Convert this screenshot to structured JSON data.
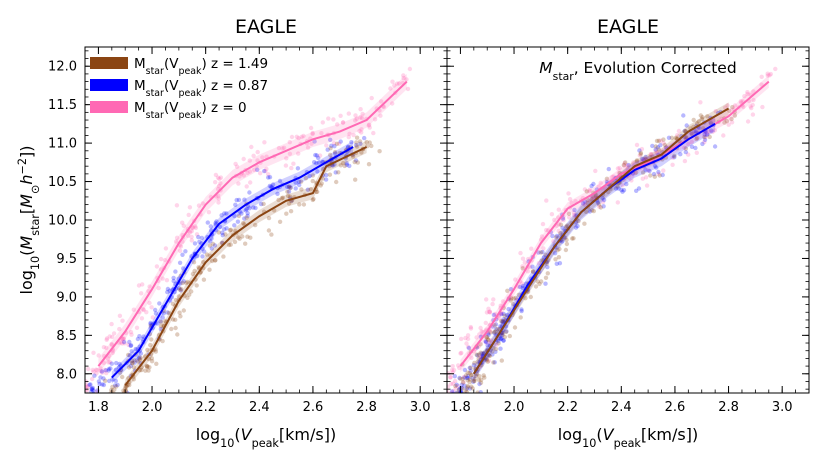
{
  "chart_data": {
    "panels": [
      {
        "type": "scatter",
        "title": "EAGLE",
        "annotation": "",
        "xlabel": "log10(Vpeak[km/s])",
        "ylabel": "log10(Mstar[M⊙h−2])",
        "xlim": [
          1.75,
          3.1
        ],
        "ylim": [
          7.75,
          12.25
        ],
        "xticks": [
          "1.8",
          "2.0",
          "2.2",
          "2.4",
          "2.6",
          "2.8",
          "3.0"
        ],
        "yticks": [
          "8.0",
          "8.5",
          "9.0",
          "9.5",
          "10.0",
          "10.5",
          "11.0",
          "11.5",
          "12.0"
        ],
        "legend": {
          "placement": "top-left",
          "entries": [
            {
              "label": "Mstar(Vpeak) z = 1.49",
              "color": "#8B4513"
            },
            {
              "label": "Mstar(Vpeak) z = 0.87",
              "color": "#0000FF"
            },
            {
              "label": "Mstar(Vpeak) z = 0",
              "color": "#FF69B4"
            }
          ]
        },
        "series": [
          {
            "name": "z = 0",
            "color": "#FF69B4",
            "x": [
              1.8,
              1.9,
              2.0,
              2.1,
              2.2,
              2.3,
              2.4,
              2.5,
              2.6,
              2.7,
              2.8,
              2.95
            ],
            "y": [
              8.1,
              8.55,
              9.1,
              9.7,
              10.2,
              10.55,
              10.75,
              10.9,
              11.05,
              11.15,
              11.3,
              11.8
            ],
            "band": 0.1
          },
          {
            "name": "z = 0.87",
            "color": "#0000FF",
            "x": [
              1.85,
              1.95,
              2.05,
              2.15,
              2.25,
              2.35,
              2.45,
              2.55,
              2.65,
              2.75
            ],
            "y": [
              7.95,
              8.3,
              8.9,
              9.5,
              9.95,
              10.2,
              10.4,
              10.55,
              10.75,
              10.95
            ],
            "band": 0.08
          },
          {
            "name": "z = 1.49",
            "color": "#8B4513",
            "x": [
              1.9,
              2.0,
              2.1,
              2.2,
              2.3,
              2.4,
              2.5,
              2.6,
              2.65,
              2.8
            ],
            "y": [
              7.85,
              8.3,
              8.95,
              9.45,
              9.8,
              10.05,
              10.25,
              10.35,
              10.7,
              10.95
            ],
            "band": 0.08
          }
        ]
      },
      {
        "type": "scatter",
        "title": "EAGLE",
        "annotation": "Mstar, Evolution Corrected",
        "xlabel": "log10(Vpeak[km/s])",
        "ylabel": "",
        "xlim": [
          1.75,
          3.1
        ],
        "ylim": [
          7.75,
          12.25
        ],
        "xticks": [
          "1.8",
          "2.0",
          "2.2",
          "2.4",
          "2.6",
          "2.8",
          "3.0"
        ],
        "yticks": [],
        "legend": null,
        "series": [
          {
            "name": "z = 0",
            "color": "#FF69B4",
            "x": [
              1.8,
              1.9,
              2.0,
              2.1,
              2.2,
              2.3,
              2.4,
              2.5,
              2.6,
              2.7,
              2.8,
              2.95
            ],
            "y": [
              8.1,
              8.55,
              9.1,
              9.7,
              10.15,
              10.35,
              10.6,
              10.75,
              10.95,
              11.15,
              11.35,
              11.8
            ],
            "band": 0.08
          },
          {
            "name": "z = 0.87",
            "color": "#0000FF",
            "x": [
              1.85,
              1.95,
              2.05,
              2.15,
              2.25,
              2.35,
              2.45,
              2.55,
              2.65,
              2.75
            ],
            "y": [
              8.0,
              8.55,
              9.15,
              9.65,
              10.1,
              10.4,
              10.65,
              10.8,
              11.05,
              11.25
            ],
            "band": 0.1
          },
          {
            "name": "z = 1.49",
            "color": "#8B4513",
            "x": [
              1.85,
              1.95,
              2.05,
              2.15,
              2.25,
              2.35,
              2.45,
              2.55,
              2.65,
              2.8
            ],
            "y": [
              8.0,
              8.55,
              9.1,
              9.65,
              10.1,
              10.4,
              10.7,
              10.85,
              11.15,
              11.45
            ],
            "band": 0.08
          }
        ]
      }
    ]
  }
}
